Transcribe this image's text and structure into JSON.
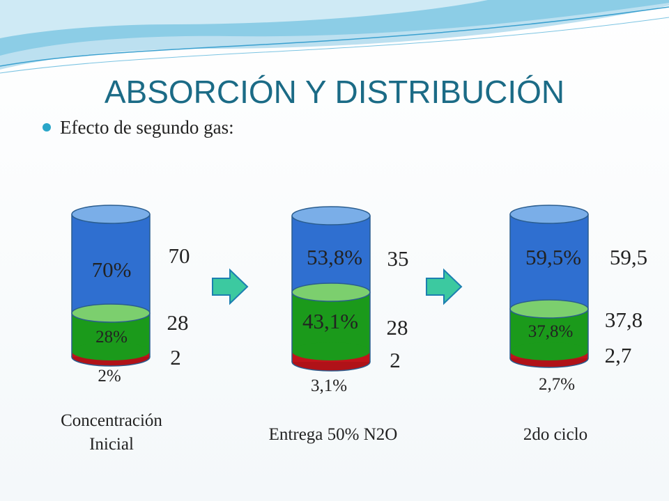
{
  "title": "ABSORCIÓN Y DISTRIBUCIÓN",
  "bullet": "Efecto de segundo gas:",
  "cylinders": [
    {
      "blue_label": "70%",
      "green_label": "28%",
      "red_label": "2%",
      "side_labels": [
        "70",
        "28",
        "2"
      ],
      "caption": [
        "Concentración",
        "Inicial"
      ]
    },
    {
      "blue_label": "53,8%",
      "green_label": "43,1%",
      "red_label": "3,1%",
      "side_labels": [
        "35",
        "28",
        "2"
      ],
      "caption": [
        "Entrega 50% N2O"
      ]
    },
    {
      "blue_label": "59,5%",
      "green_label": "37,8%",
      "red_label": "2,7%",
      "side_labels": [
        "59,5",
        "37,8",
        "2,7"
      ],
      "caption": [
        "2do ciclo"
      ]
    }
  ]
}
